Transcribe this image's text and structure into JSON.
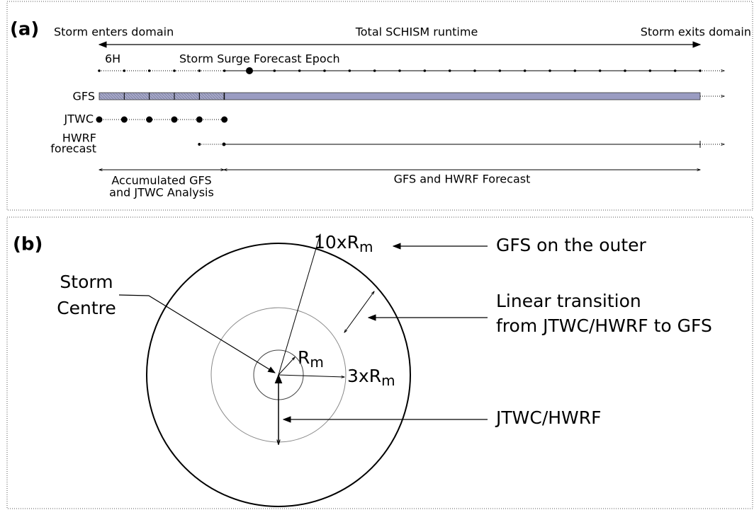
{
  "panel_a": {
    "label": "(a)",
    "start": "Storm enters domain",
    "runtime": "Total SCHISM runtime",
    "end": "Storm exits domain",
    "interval": "6H",
    "epoch": "Storm Surge Forecast Epoch",
    "gfs": "GFS",
    "jtwc": "JTWC",
    "hwrf": [
      "HWRF",
      "forecast"
    ],
    "analysis": [
      "Accumulated GFS",
      "and JTWC Analysis"
    ],
    "forecast": "GFS and HWRF Forecast"
  },
  "panel_b": {
    "label": "(b)",
    "outer_radius": {
      "text": "10xR",
      "sub": "m"
    },
    "outer_note": "GFS on the outer",
    "centre": [
      "Storm",
      "Centre"
    ],
    "transition": [
      "Linear transition",
      "from JTWC/HWRF to GFS"
    ],
    "inner_radius": {
      "text": "R",
      "sub": "m"
    },
    "mid_radius": {
      "text": "3xR",
      "sub": "m"
    },
    "inner_note": "JTWC/HWRF"
  }
}
